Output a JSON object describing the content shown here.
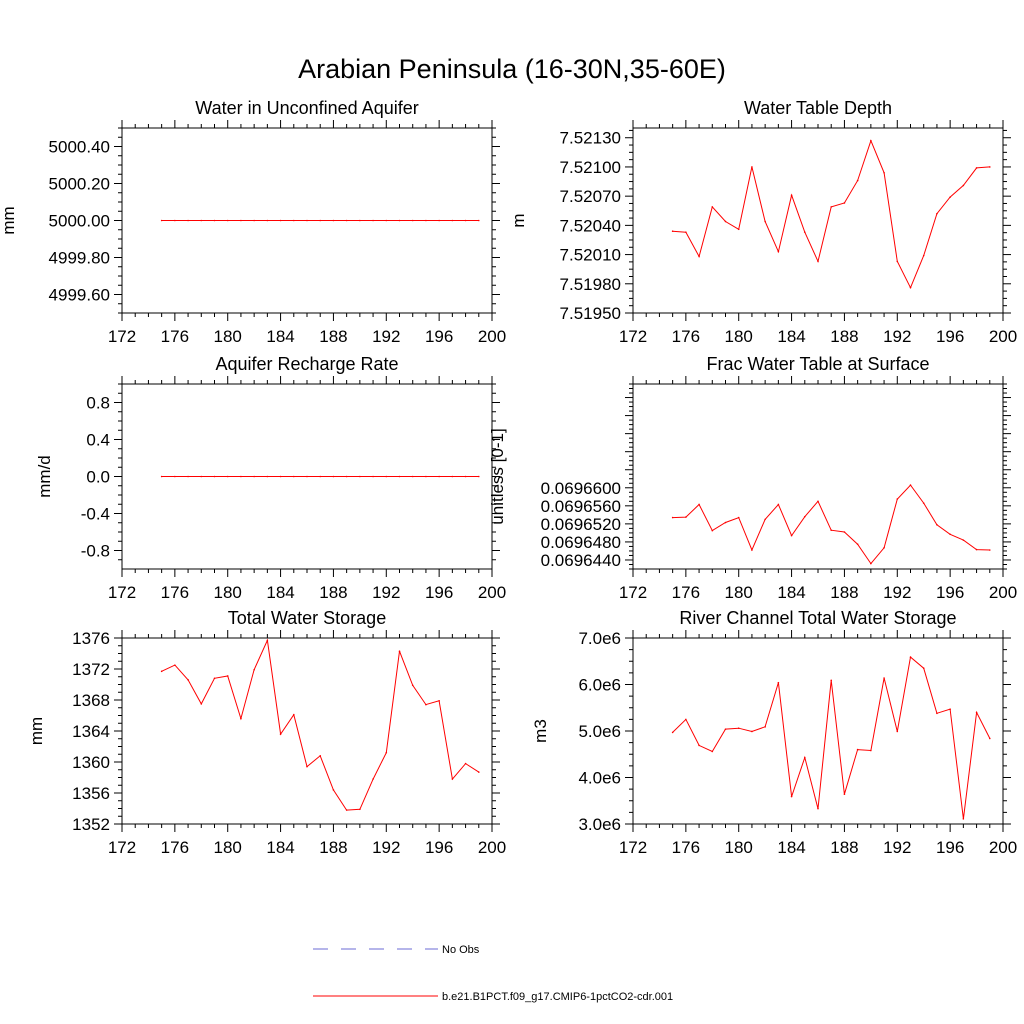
{
  "figure": {
    "title": "Arabian Peninsula (16-30N,35-60E)"
  },
  "legend": {
    "entries": [
      {
        "label": "No Obs",
        "color": "#6b6bd6",
        "style": "dashed"
      },
      {
        "label": "b.e21.B1PCT.f09_g17.CMIP6-1pctCO2-cdr.001",
        "color": "#ff0000",
        "style": "solid"
      }
    ]
  },
  "chart_data": [
    {
      "type": "line",
      "title": "Water in Unconfined Aquifer",
      "ylabel": "mm",
      "xlim": [
        172,
        200
      ],
      "ylim": [
        4999.5,
        5000.5
      ],
      "xticks": [
        172,
        176,
        180,
        184,
        188,
        192,
        196,
        200
      ],
      "yticks": [
        4999.6,
        4999.8,
        5000.0,
        5000.2,
        5000.4
      ],
      "ytick_labels": [
        "4999.60",
        "4999.80",
        "5000.00",
        "5000.20",
        "5000.40"
      ],
      "x": [
        175,
        176,
        177,
        178,
        179,
        180,
        181,
        182,
        183,
        184,
        185,
        186,
        187,
        188,
        189,
        190,
        191,
        192,
        193,
        194,
        195,
        196,
        197,
        198,
        199
      ],
      "series": [
        {
          "values": [
            5000.0,
            5000.0,
            5000.0,
            5000.0,
            5000.0,
            5000.0,
            5000.0,
            5000.0,
            5000.0,
            5000.0,
            5000.0,
            5000.0,
            5000.0,
            5000.0,
            5000.0,
            5000.0,
            5000.0,
            5000.0,
            5000.0,
            5000.0,
            5000.0,
            5000.0,
            5000.0,
            5000.0,
            5000.0
          ],
          "color": "#ff0000"
        }
      ]
    },
    {
      "type": "line",
      "title": "Water Table Depth",
      "ylabel": "m",
      "xlim": [
        172,
        200
      ],
      "ylim": [
        7.5195,
        7.5214
      ],
      "xticks": [
        172,
        176,
        180,
        184,
        188,
        192,
        196,
        200
      ],
      "yticks": [
        7.5195,
        7.5198,
        7.5201,
        7.5204,
        7.5207,
        7.521,
        7.5213
      ],
      "ytick_labels": [
        "7.51950",
        "7.51980",
        "7.52010",
        "7.52040",
        "7.52070",
        "7.52100",
        "7.52130"
      ],
      "x": [
        175,
        176,
        177,
        178,
        179,
        180,
        181,
        182,
        183,
        184,
        185,
        186,
        187,
        188,
        189,
        190,
        191,
        192,
        193,
        194,
        195,
        196,
        197,
        198,
        199
      ],
      "series": [
        {
          "values": [
            7.52034,
            7.52033,
            7.52008,
            7.52059,
            7.52044,
            7.52036,
            7.521,
            7.52044,
            7.52013,
            7.52071,
            7.52033,
            7.52003,
            7.52059,
            7.52063,
            7.52086,
            7.52127,
            7.52094,
            7.52003,
            7.51976,
            7.52009,
            7.52052,
            7.52069,
            7.52081,
            7.52099,
            7.521
          ],
          "color": "#ff0000"
        }
      ]
    },
    {
      "type": "line",
      "title": "Aquifer Recharge Rate",
      "ylabel": "mm/d",
      "xlim": [
        172,
        200
      ],
      "ylim": [
        -1.0,
        1.0
      ],
      "xticks": [
        172,
        176,
        180,
        184,
        188,
        192,
        196,
        200
      ],
      "yticks": [
        -0.8,
        -0.4,
        0.0,
        0.4,
        0.8
      ],
      "ytick_labels": [
        "-0.8",
        "-0.4",
        "0.0",
        "0.4",
        "0.8"
      ],
      "x": [
        175,
        176,
        177,
        178,
        179,
        180,
        181,
        182,
        183,
        184,
        185,
        186,
        187,
        188,
        189,
        190,
        191,
        192,
        193,
        194,
        195,
        196,
        197,
        198,
        199
      ],
      "series": [
        {
          "values": [
            0,
            0,
            0,
            0,
            0,
            0,
            0,
            0,
            0,
            0,
            0,
            0,
            0,
            0,
            0,
            0,
            0,
            0,
            0,
            0,
            0,
            0,
            0,
            0,
            0
          ],
          "color": "#ff0000"
        }
      ]
    },
    {
      "type": "line",
      "title": "Frac Water Table at Surface",
      "ylabel": "unitless [0-1]",
      "xlim": [
        172,
        200
      ],
      "ylim": [
        0.069642,
        0.069683
      ],
      "xticks": [
        172,
        176,
        180,
        184,
        188,
        192,
        196,
        200
      ],
      "yticks": [
        0.069644,
        0.069648,
        0.069652,
        0.069656,
        0.06966
      ],
      "ytick_labels": [
        "0.0696440",
        "0.0696480",
        "0.0696520",
        "0.0696560",
        "0.0696600"
      ],
      "x": [
        175,
        176,
        177,
        178,
        179,
        180,
        181,
        182,
        183,
        184,
        185,
        186,
        187,
        188,
        189,
        190,
        191,
        192,
        193,
        194,
        195,
        196,
        197,
        198,
        199
      ],
      "series": [
        {
          "values": [
            0.0696534,
            0.0696535,
            0.0696563,
            0.0696505,
            0.0696523,
            0.0696534,
            0.0696462,
            0.069653,
            0.0696563,
            0.0696494,
            0.0696536,
            0.069657,
            0.0696506,
            0.0696502,
            0.0696475,
            0.0696432,
            0.0696467,
            0.0696575,
            0.0696606,
            0.0696566,
            0.0696518,
            0.0696497,
            0.0696484,
            0.0696463,
            0.0696462
          ],
          "color": "#ff0000"
        }
      ]
    },
    {
      "type": "line",
      "title": "Total Water Storage",
      "ylabel": "mm",
      "xlim": [
        172,
        200
      ],
      "ylim": [
        1352,
        1376
      ],
      "xticks": [
        172,
        176,
        180,
        184,
        188,
        192,
        196,
        200
      ],
      "yticks": [
        1352,
        1356,
        1360,
        1364,
        1368,
        1372,
        1376
      ],
      "ytick_labels": [
        "1352",
        "1356",
        "1360",
        "1364",
        "1368",
        "1372",
        "1376"
      ],
      "x": [
        175,
        176,
        177,
        178,
        179,
        180,
        181,
        182,
        183,
        184,
        185,
        186,
        187,
        188,
        189,
        190,
        191,
        192,
        193,
        194,
        195,
        196,
        197,
        198,
        199
      ],
      "series": [
        {
          "values": [
            1371.7,
            1372.5,
            1370.6,
            1367.5,
            1370.8,
            1371.1,
            1365.6,
            1371.9,
            1375.7,
            1363.6,
            1366.1,
            1359.4,
            1360.8,
            1356.4,
            1353.8,
            1353.9,
            1357.8,
            1361.2,
            1374.3,
            1369.9,
            1367.4,
            1367.9,
            1357.8,
            1359.8,
            1358.7
          ],
          "color": "#ff0000"
        }
      ]
    },
    {
      "type": "line",
      "title": "River Channel Total Water Storage",
      "ylabel": "m3",
      "xlim": [
        172,
        200
      ],
      "ylim": [
        3000000,
        7000000
      ],
      "xticks": [
        172,
        176,
        180,
        184,
        188,
        192,
        196,
        200
      ],
      "yticks": [
        3000000,
        4000000,
        5000000,
        6000000,
        7000000
      ],
      "ytick_labels": [
        "3.0e6",
        "4.0e6",
        "5.0e6",
        "6.0e6",
        "7.0e6"
      ],
      "x": [
        175,
        176,
        177,
        178,
        179,
        180,
        181,
        182,
        183,
        184,
        185,
        186,
        187,
        188,
        189,
        190,
        191,
        192,
        193,
        194,
        195,
        196,
        197,
        198,
        199
      ],
      "series": [
        {
          "values": [
            4970000,
            5250000,
            4690000,
            4560000,
            5040000,
            5060000,
            4990000,
            5090000,
            6040000,
            3590000,
            4430000,
            3330000,
            6090000,
            3640000,
            4600000,
            4580000,
            6140000,
            4990000,
            6590000,
            6350000,
            5380000,
            5470000,
            3110000,
            5400000,
            4840000
          ],
          "color": "#ff0000"
        }
      ]
    }
  ]
}
